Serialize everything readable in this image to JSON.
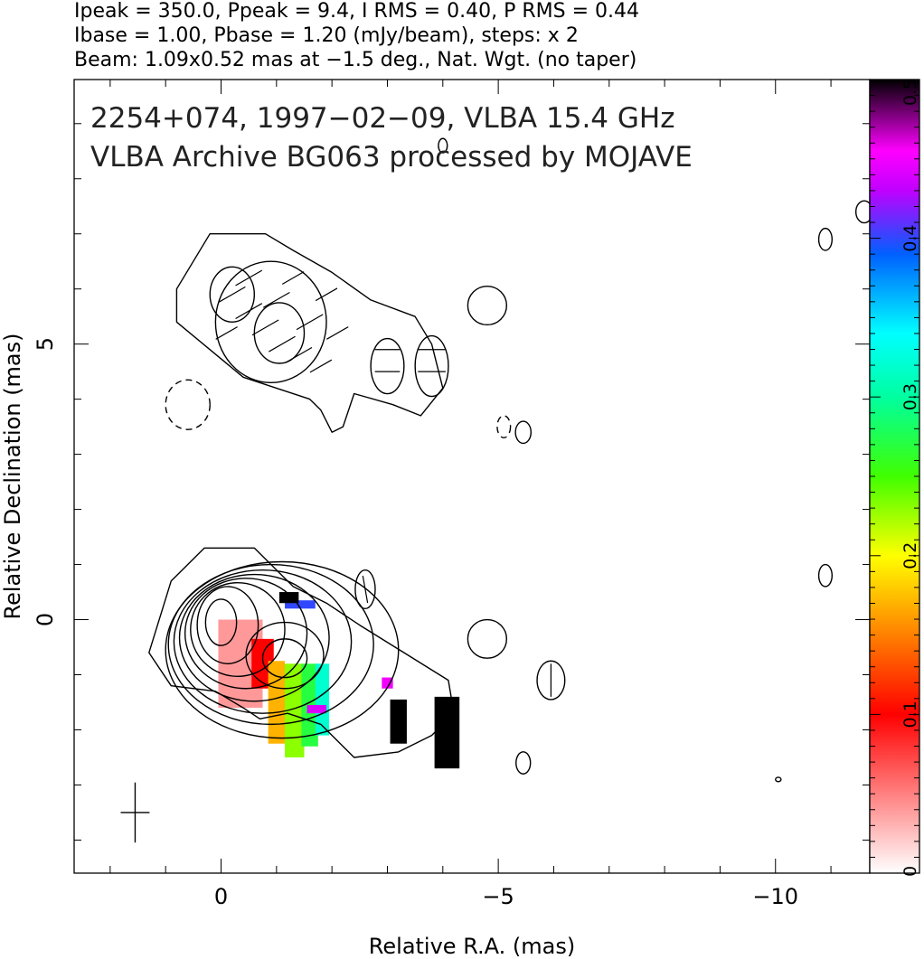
{
  "chart_data": {
    "type": "heatmap",
    "header_lines": [
      "Ipeak = 350.0, Ppeak = 9.4, I RMS = 0.40, P RMS = 0.44",
      "Ibase = 1.00, Pbase = 1.20 (mJy/beam), steps: x 2",
      "Beam: 1.09x0.52 mas at −1.5 deg., Nat. Wgt. (no taper)"
    ],
    "annotation_lines": [
      "2254+074, 1997−02−09, VLBA 15.4 GHz",
      "VLBA Archive BG063 processed by MOJAVE"
    ],
    "xlabel": "Relative R.A. (mas)",
    "ylabel": "Relative Declination (mas)",
    "xlim": [
      2.65,
      -11.7
    ],
    "ylim": [
      -4.6,
      9.8
    ],
    "x_ticks": [
      {
        "value": 0,
        "label": "0"
      },
      {
        "value": -5,
        "label": "−5"
      },
      {
        "value": -10,
        "label": "−10"
      }
    ],
    "y_ticks": [
      {
        "value": 0,
        "label": "0"
      },
      {
        "value": 5,
        "label": "5"
      }
    ],
    "colorbar": {
      "range": [
        0,
        0.5
      ],
      "ticks": [
        {
          "value": 0,
          "label": "0"
        },
        {
          "value": 0.1,
          "label": "0.1"
        },
        {
          "value": 0.2,
          "label": "0.2"
        },
        {
          "value": 0.3,
          "label": "0.3"
        },
        {
          "value": 0.4,
          "label": "0.4"
        },
        {
          "value": 0.5,
          "label": "0.5"
        }
      ]
    },
    "beam": {
      "major_mas": 1.09,
      "minor_mas": 0.52,
      "pa_deg": -1.5,
      "center": [
        1.55,
        -3.5
      ]
    },
    "contours": [
      {
        "kind": "closed",
        "points": [
          [
            1.3,
            -0.6
          ],
          [
            0.9,
            0.7
          ],
          [
            0.3,
            1.3
          ],
          [
            -0.6,
            1.3
          ],
          [
            -1.3,
            0.6
          ],
          [
            -1.9,
            0.3
          ],
          [
            -2.5,
            -0.1
          ],
          [
            -3.3,
            -0.6
          ],
          [
            -4.1,
            -1.1
          ],
          [
            -4.2,
            -1.7
          ],
          [
            -3.8,
            -2.1
          ],
          [
            -3.2,
            -2.4
          ],
          [
            -2.4,
            -2.5
          ],
          [
            -1.8,
            -1.9
          ],
          [
            -1.2,
            -1.7
          ],
          [
            -0.7,
            -1.8
          ],
          [
            -0.4,
            -1.6
          ],
          [
            0.1,
            -1.3
          ],
          [
            0.9,
            -1.2
          ],
          [
            1.3,
            -0.6
          ]
        ]
      },
      {
        "kind": "ellipse",
        "center": [
          -1.1,
          -0.55
        ],
        "rx": 2.1,
        "ry": 1.6
      },
      {
        "kind": "ellipse",
        "center": [
          -0.9,
          -0.45
        ],
        "rx": 1.85,
        "ry": 1.45
      },
      {
        "kind": "ellipse",
        "center": [
          -0.75,
          -0.4
        ],
        "rx": 1.6,
        "ry": 1.3
      },
      {
        "kind": "ellipse",
        "center": [
          -0.6,
          -0.33
        ],
        "rx": 1.35,
        "ry": 1.15
      },
      {
        "kind": "ellipse",
        "center": [
          -0.45,
          -0.25
        ],
        "rx": 1.1,
        "ry": 1.0
      },
      {
        "kind": "ellipse",
        "center": [
          -0.3,
          -0.18
        ],
        "rx": 0.85,
        "ry": 0.85
      },
      {
        "kind": "ellipse",
        "center": [
          -0.12,
          -0.1
        ],
        "rx": 0.55,
        "ry": 0.7
      },
      {
        "kind": "ellipse",
        "center": [
          0.0,
          -0.05
        ],
        "rx": 0.28,
        "ry": 0.42
      },
      {
        "kind": "ellipse",
        "center": [
          -1.15,
          -0.65
        ],
        "rx": 0.7,
        "ry": 0.6
      },
      {
        "kind": "ellipse",
        "center": [
          -1.15,
          -0.7
        ],
        "rx": 0.4,
        "ry": 0.35
      },
      {
        "kind": "closed",
        "points": [
          [
            0.8,
            6.0
          ],
          [
            0.2,
            7.0
          ],
          [
            -0.8,
            7.0
          ],
          [
            -1.3,
            6.7
          ],
          [
            -2.0,
            6.3
          ],
          [
            -2.7,
            5.8
          ],
          [
            -3.5,
            5.5
          ],
          [
            -3.8,
            5.0
          ],
          [
            -4.0,
            4.2
          ],
          [
            -3.6,
            3.7
          ],
          [
            -3.1,
            3.9
          ],
          [
            -2.4,
            4.1
          ],
          [
            -2.2,
            3.5
          ],
          [
            -2.0,
            3.4
          ],
          [
            -1.8,
            3.8
          ],
          [
            -1.6,
            4.0
          ],
          [
            -1.0,
            4.2
          ],
          [
            -0.4,
            4.4
          ],
          [
            0.2,
            4.9
          ],
          [
            0.8,
            5.4
          ],
          [
            0.8,
            6.0
          ]
        ]
      },
      {
        "kind": "ellipse",
        "center": [
          -0.9,
          5.4
        ],
        "rx": 1.0,
        "ry": 1.1
      },
      {
        "kind": "ellipse",
        "center": [
          -1.05,
          5.2
        ],
        "rx": 0.45,
        "ry": 0.55
      },
      {
        "kind": "ellipse",
        "center": [
          -0.2,
          5.9
        ],
        "rx": 0.4,
        "ry": 0.5
      },
      {
        "kind": "ellipse",
        "center": [
          -3.0,
          4.6
        ],
        "rx": 0.3,
        "ry": 0.5
      },
      {
        "kind": "ellipse",
        "center": [
          -3.8,
          4.6
        ],
        "rx": 0.3,
        "ry": 0.55
      },
      {
        "kind": "ellipse",
        "center": [
          -4.8,
          5.7
        ],
        "rx": 0.35,
        "ry": 0.35
      },
      {
        "kind": "ellipse",
        "center": [
          -4.8,
          -0.35
        ],
        "rx": 0.35,
        "ry": 0.35
      },
      {
        "kind": "ellipse",
        "center": [
          -5.95,
          -1.1
        ],
        "rx": 0.25,
        "ry": 0.35
      },
      {
        "kind": "ellipse",
        "center": [
          -2.6,
          0.55
        ],
        "rx": 0.18,
        "ry": 0.35
      },
      {
        "kind": "ellipse",
        "center": [
          -5.45,
          3.4
        ],
        "rx": 0.14,
        "ry": 0.2
      },
      {
        "kind": "ellipse",
        "center": [
          -5.45,
          -2.6
        ],
        "rx": 0.13,
        "ry": 0.2
      },
      {
        "kind": "ellipse",
        "center": [
          -10.9,
          6.9
        ],
        "rx": 0.12,
        "ry": 0.2
      },
      {
        "kind": "ellipse",
        "center": [
          -10.9,
          0.8
        ],
        "rx": 0.12,
        "ry": 0.2
      },
      {
        "kind": "ellipse",
        "center": [
          -11.6,
          7.4
        ],
        "rx": 0.15,
        "ry": 0.2
      },
      {
        "kind": "ellipse",
        "center": [
          -10.05,
          -2.9
        ],
        "rx": 0.05,
        "ry": 0.04
      },
      {
        "kind": "ellipse",
        "center": [
          -4.0,
          8.6
        ],
        "rx": 0.08,
        "ry": 0.13
      },
      {
        "kind": "ellipse",
        "center": [
          0.6,
          3.9
        ],
        "rx": 0.4,
        "ry": 0.45,
        "dashed": true
      },
      {
        "kind": "ellipse",
        "center": [
          -5.1,
          3.5
        ],
        "rx": 0.12,
        "ry": 0.2,
        "dashed": true
      }
    ],
    "polarization_pixels": [
      {
        "x": 0.05,
        "y": 0.0,
        "w": 0.8,
        "h": 1.6,
        "fraction": 0.04
      },
      {
        "x": -0.55,
        "y": -0.35,
        "w": 0.4,
        "h": 0.9,
        "fraction": 0.1
      },
      {
        "x": -0.85,
        "y": -0.75,
        "w": 0.3,
        "h": 1.5,
        "fraction": 0.17
      },
      {
        "x": -1.15,
        "y": -0.8,
        "w": 0.35,
        "h": 1.7,
        "fraction": 0.23
      },
      {
        "x": -1.45,
        "y": -0.8,
        "w": 0.3,
        "h": 1.5,
        "fraction": 0.27
      },
      {
        "x": -1.7,
        "y": -0.8,
        "w": 0.25,
        "h": 1.3,
        "fraction": 0.32
      },
      {
        "x": -1.15,
        "y": 0.35,
        "w": 0.55,
        "h": 0.15,
        "fraction": 0.4
      },
      {
        "x": -1.05,
        "y": 0.5,
        "w": 0.35,
        "h": 0.2,
        "fraction": 0.5
      },
      {
        "x": -1.55,
        "y": -1.55,
        "w": 0.35,
        "h": 0.15,
        "fraction": 0.44
      },
      {
        "x": -3.05,
        "y": -1.45,
        "w": 0.3,
        "h": 0.8,
        "fraction": 0.5
      },
      {
        "x": -2.9,
        "y": -1.05,
        "w": 0.2,
        "h": 0.2,
        "fraction": 0.45
      },
      {
        "x": -3.85,
        "y": -1.4,
        "w": 0.45,
        "h": 1.3,
        "fraction": 0.5
      }
    ],
    "evpa_sticks": [
      {
        "x": -0.2,
        "y": 5.9,
        "angle": -30,
        "len": 0.55
      },
      {
        "x": -0.5,
        "y": 5.6,
        "angle": -30,
        "len": 0.55
      },
      {
        "x": -0.8,
        "y": 5.3,
        "angle": -30,
        "len": 0.55
      },
      {
        "x": -1.1,
        "y": 5.0,
        "angle": -30,
        "len": 0.55
      },
      {
        "x": -1.4,
        "y": 4.8,
        "angle": -30,
        "len": 0.55
      },
      {
        "x": -0.5,
        "y": 6.2,
        "angle": -30,
        "len": 0.55
      },
      {
        "x": -1.0,
        "y": 5.8,
        "angle": -30,
        "len": 0.55
      },
      {
        "x": -1.6,
        "y": 5.4,
        "angle": -30,
        "len": 0.55
      },
      {
        "x": -1.9,
        "y": 5.9,
        "angle": -30,
        "len": 0.45
      },
      {
        "x": -1.3,
        "y": 6.2,
        "angle": -30,
        "len": 0.45
      },
      {
        "x": -0.1,
        "y": 5.2,
        "angle": -30,
        "len": 0.45
      },
      {
        "x": -1.8,
        "y": 4.6,
        "angle": -30,
        "len": 0.45
      },
      {
        "x": -2.1,
        "y": 5.2,
        "angle": -30,
        "len": 0.45
      },
      {
        "x": -3.0,
        "y": 4.9,
        "angle": 0,
        "len": 0.45
      },
      {
        "x": -3.0,
        "y": 4.5,
        "angle": 0,
        "len": 0.45
      },
      {
        "x": -3.8,
        "y": 4.9,
        "angle": 0,
        "len": 0.5
      },
      {
        "x": -3.8,
        "y": 4.5,
        "angle": 0,
        "len": 0.5
      },
      {
        "x": -5.95,
        "y": -1.1,
        "angle": 90,
        "len": 0.6
      },
      {
        "x": -2.6,
        "y": 0.55,
        "angle": 80,
        "len": 0.5
      }
    ]
  }
}
